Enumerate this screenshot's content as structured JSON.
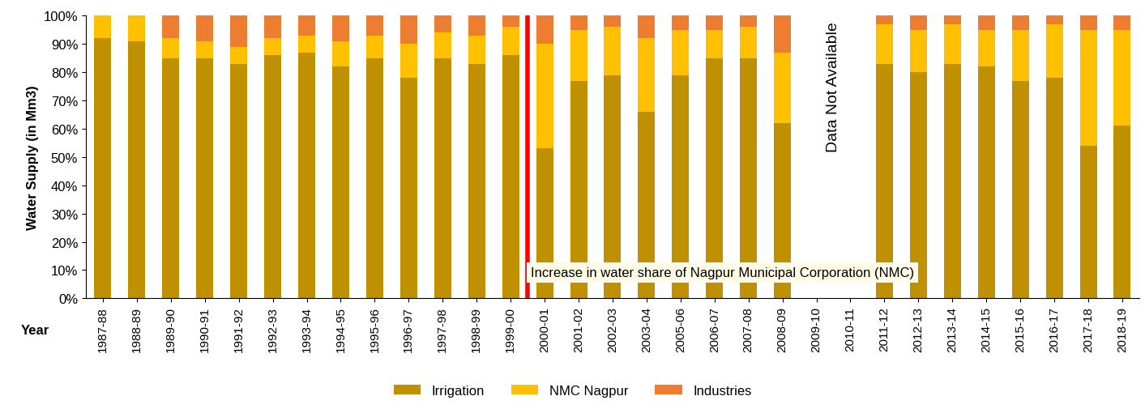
{
  "chart_data": {
    "type": "bar",
    "stacked": true,
    "y_label": "Water Supply (in Mm3)",
    "x_label": "Year",
    "categories": [
      "1987-88",
      "1988-89",
      "1989-90",
      "1990-91",
      "1991-92",
      "1992-93",
      "1993-94",
      "1994-95",
      "1995-96",
      "1996-97",
      "1997-98",
      "1998-99",
      "1999-00",
      "2000-01",
      "2001-02",
      "2002-03",
      "2003-04",
      "2005-06",
      "2006-07",
      "2007-08",
      "2008-09",
      "2009-10",
      "2010-11",
      "2011-12",
      "2012-13",
      "2013-14",
      "2014-15",
      "2015-16",
      "2016-17",
      "2017-18",
      "2018-19"
    ],
    "series": [
      {
        "name": "Irrigation",
        "color": "#bf9000",
        "values": [
          92,
          91,
          85,
          85,
          83,
          86,
          87,
          82,
          85,
          78,
          85,
          83,
          86,
          53,
          77,
          79,
          66,
          79,
          85,
          85,
          62,
          null,
          null,
          83,
          80,
          83,
          82,
          77,
          78,
          54,
          61
        ]
      },
      {
        "name": "NMC Nagpur",
        "color": "#ffc000",
        "values": [
          8,
          9,
          7,
          6,
          6,
          6,
          6,
          9,
          8,
          12,
          9,
          10,
          10,
          37,
          18,
          17,
          26,
          16,
          10,
          11,
          25,
          null,
          null,
          14,
          15,
          14,
          13,
          18,
          19,
          41,
          34
        ]
      },
      {
        "name": "Industries",
        "color": "#ed7d31",
        "values": [
          0,
          0,
          8,
          9,
          11,
          8,
          7,
          9,
          7,
          10,
          6,
          7,
          4,
          10,
          5,
          4,
          8,
          5,
          5,
          4,
          13,
          null,
          null,
          3,
          5,
          3,
          5,
          5,
          3,
          5,
          5
        ]
      }
    ],
    "ylim": [
      0,
      100
    ],
    "yticks": [
      {
        "value": 0,
        "label": "0%"
      },
      {
        "value": 10,
        "label": "10%"
      },
      {
        "value": 20,
        "label": "20%"
      },
      {
        "value": 30,
        "label": "30%"
      },
      {
        "value": 40,
        "label": "40%"
      },
      {
        "value": 50,
        "label": "50%"
      },
      {
        "value": 60,
        "label": "60%"
      },
      {
        "value": 70,
        "label": "70%"
      },
      {
        "value": 80,
        "label": "80%"
      },
      {
        "value": 90,
        "label": "90%"
      },
      {
        "value": 100,
        "label": "100%"
      }
    ],
    "legend": "bottom",
    "annotations": [
      {
        "text": "Data Not Available",
        "category": "2009-10"
      },
      {
        "text": "Increase in water share of Nagpur Municipal Corporation (NMC)",
        "category": "2000-01",
        "color": "#ff0000"
      }
    ]
  }
}
